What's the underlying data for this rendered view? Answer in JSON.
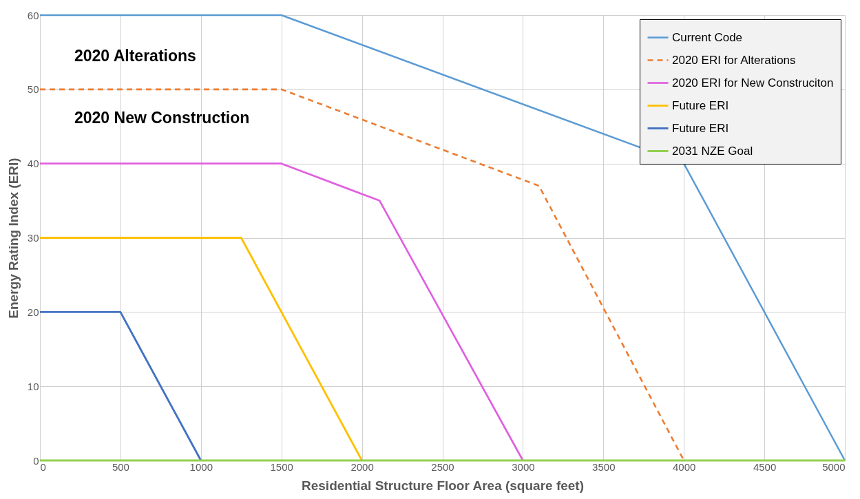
{
  "chart_data": {
    "type": "line",
    "xlabel": "Residential Structure Floor Area (square feet)",
    "ylabel": "Energy Rating Index (ERI)",
    "xlim": [
      0,
      5000
    ],
    "xticks": [
      0,
      500,
      1000,
      1500,
      2000,
      2500,
      3000,
      3500,
      4000,
      4500,
      5000
    ],
    "ylim": [
      0,
      60
    ],
    "yticks": [
      0,
      10,
      20,
      30,
      40,
      50,
      60
    ],
    "grid": true,
    "legend": "top right",
    "marker": "none",
    "annotations": [
      "2020 Alterations",
      "2020 New Construction"
    ],
    "series": [
      {
        "name": "Current Code",
        "color": "#5b9bd5",
        "line_style": "solid",
        "x": [
          0,
          1500,
          4000,
          5000
        ],
        "values": [
          60,
          60,
          40,
          0
        ]
      },
      {
        "name": "2020 ERI for Alterations",
        "color": "#ed7d31",
        "line_style": "dashed",
        "x": [
          0,
          1500,
          3100,
          4000
        ],
        "values": [
          50,
          50,
          37,
          0
        ]
      },
      {
        "name": "2020 ERI for New Construciton",
        "color": "#e060e0",
        "line_style": "solid",
        "x": [
          0,
          1500,
          2110,
          3000
        ],
        "values": [
          40,
          40,
          35,
          0
        ]
      },
      {
        "name": "Future ERI",
        "color": "#ffc000",
        "line_style": "solid",
        "x": [
          0,
          1250,
          2000
        ],
        "values": [
          30,
          30,
          0
        ]
      },
      {
        "name": "Future ERI",
        "color": "#4472c4",
        "line_style": "solid",
        "x": [
          0,
          500,
          1000
        ],
        "values": [
          20,
          20,
          0
        ]
      },
      {
        "name": "2031 NZE Goal",
        "color": "#92d050",
        "line_style": "solid",
        "x": [
          0,
          5000
        ],
        "values": [
          0,
          0
        ]
      }
    ]
  }
}
